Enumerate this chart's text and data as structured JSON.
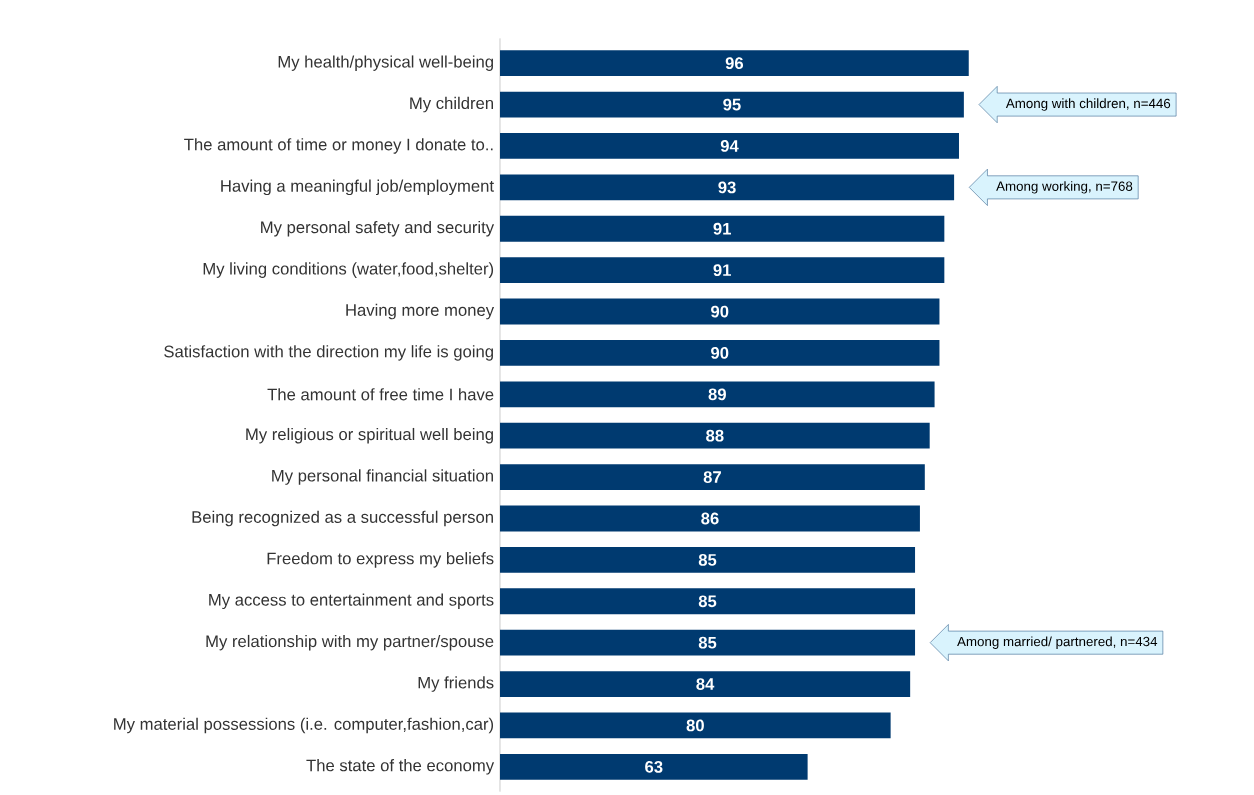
{
  "chart_data": {
    "type": "bar",
    "orientation": "horizontal",
    "color": "#003a70",
    "data_labels": true,
    "categories": [
      "My health/physical well-being",
      "My children",
      "The amount of time or money I donate to..",
      "Having a meaningful job/employment",
      "My personal safety and security",
      "My living conditions (water,food,shelter)",
      "Having more money",
      "Satisfaction with the direction my life is going",
      "The amount of free time I have",
      "My religious or spiritual well being",
      "My personal financial situation",
      "Being recognized as a successful person",
      "Freedom to express my beliefs",
      "My access to entertainment and sports",
      "My relationship with my partner/spouse",
      "My friends",
      "My material possessions (i.e. computer,fashion,car)",
      "The state of the economy"
    ],
    "values": [
      96,
      95,
      94,
      93,
      91,
      91,
      90,
      90,
      89,
      88,
      87,
      86,
      85,
      85,
      85,
      84,
      80,
      63
    ],
    "annotations": [
      "Among with children, n=446",
      "Among working, n=768",
      "Among married/ partnered,   n=434"
    ]
  }
}
